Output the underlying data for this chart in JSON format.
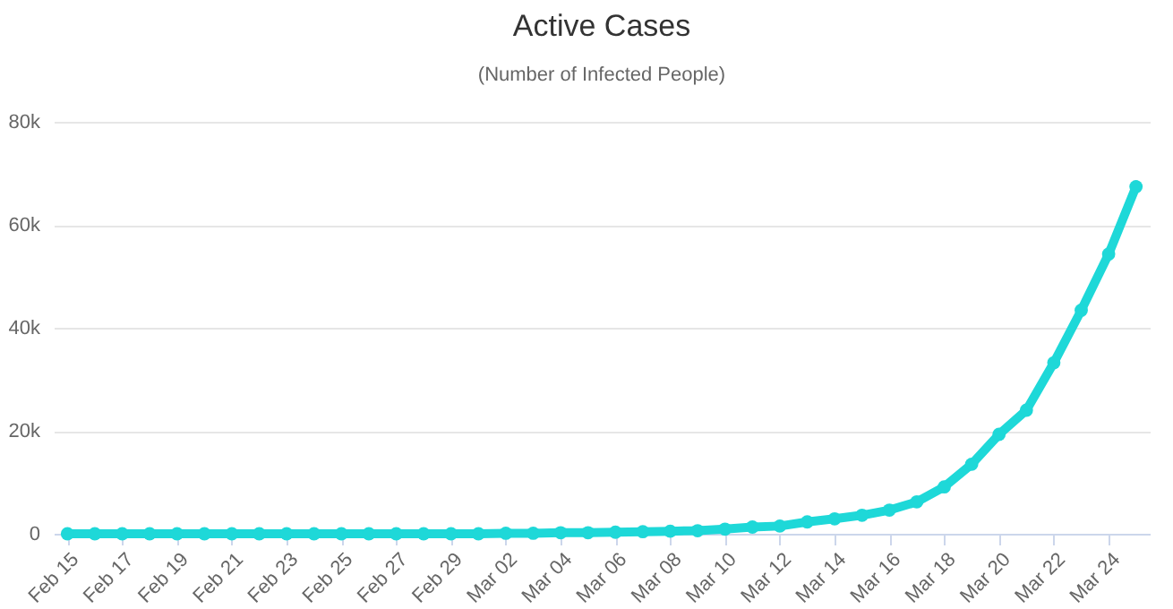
{
  "chart_data": {
    "type": "line",
    "title": "Active Cases",
    "subtitle": "(Number of Infected People)",
    "x": [
      "--02-15",
      "--02-16",
      "--02-17",
      "--02-18",
      "--02-19",
      "--02-20",
      "--02-21",
      "--02-22",
      "--02-23",
      "--02-24",
      "--02-25",
      "--02-26",
      "--02-27",
      "--02-28",
      "--02-29",
      "--03-01",
      "--03-02",
      "--03-03",
      "--03-04",
      "--03-05",
      "--03-06",
      "--03-07",
      "--03-08",
      "--03-09",
      "--03-10",
      "--03-11",
      "--03-12",
      "--03-13",
      "--03-14",
      "--03-15",
      "--03-16",
      "--03-17",
      "--03-18",
      "--03-19",
      "--03-20",
      "--03-21",
      "--03-22",
      "--03-23",
      "--03-24",
      "--03-25"
    ],
    "series": [
      {
        "color": "#1ed8d8",
        "values": [
          0,
          0,
          0,
          0,
          0,
          0,
          0,
          0,
          0,
          0,
          0,
          0,
          0,
          0,
          0,
          0,
          100,
          100,
          200,
          200,
          300,
          400,
          500,
          600,
          900,
          1300,
          1500,
          2300,
          2900,
          3600,
          4600,
          6200,
          9100,
          13500,
          19300,
          24000,
          33200,
          43400,
          54300,
          67400
        ]
      }
    ],
    "xlim": [
      "--02-14T12:00",
      "--03-25T12:00"
    ],
    "xticks": [
      {
        "value": "--02-15",
        "label": "Feb 15"
      },
      {
        "value": "--02-17",
        "label": "Feb 17"
      },
      {
        "value": "--02-19",
        "label": "Feb 19"
      },
      {
        "value": "--02-21",
        "label": "Feb 21"
      },
      {
        "value": "--02-23",
        "label": "Feb 23"
      },
      {
        "value": "--02-25",
        "label": "Feb 25"
      },
      {
        "value": "--02-27",
        "label": "Feb 27"
      },
      {
        "value": "--02-29",
        "label": "Feb 29"
      },
      {
        "value": "--03-02",
        "label": "Mar 02"
      },
      {
        "value": "--03-04",
        "label": "Mar 04"
      },
      {
        "value": "--03-06",
        "label": "Mar 06"
      },
      {
        "value": "--03-08",
        "label": "Mar 08"
      },
      {
        "value": "--03-10",
        "label": "Mar 10"
      },
      {
        "value": "--03-12",
        "label": "Mar 12"
      },
      {
        "value": "--03-14",
        "label": "Mar 14"
      },
      {
        "value": "--03-16",
        "label": "Mar 16"
      },
      {
        "value": "--03-18",
        "label": "Mar 18"
      },
      {
        "value": "--03-20",
        "label": "Mar 20"
      },
      {
        "value": "--03-22",
        "label": "Mar 22"
      },
      {
        "value": "--03-24",
        "label": "Mar 24"
      }
    ],
    "ylim": [
      0,
      80000
    ],
    "yticks": [
      0,
      {
        "value": 20000,
        "label": "20k"
      },
      {
        "value": 40000,
        "label": "40k"
      },
      {
        "value": 60000,
        "label": "60k"
      },
      {
        "value": 80000,
        "label": "80k"
      }
    ],
    "grid": "y",
    "marker": "circle",
    "line_style": "solid"
  }
}
